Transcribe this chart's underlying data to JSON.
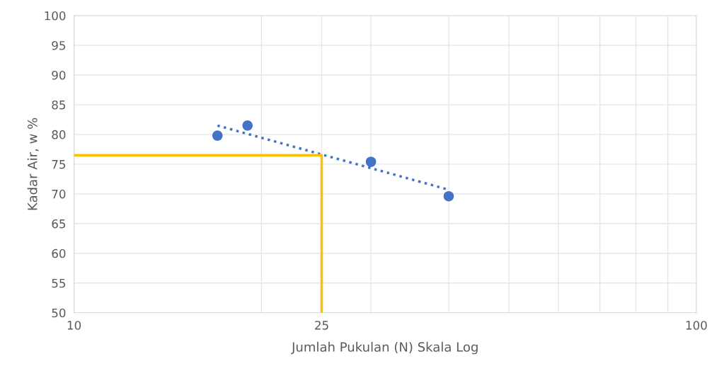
{
  "chart_data": {
    "type": "scatter",
    "xlabel": "Jumlah Pukulan (N) Skala Log",
    "ylabel": "Kadar Air, w %",
    "log": "x",
    "xlim": [
      10,
      100
    ],
    "ylim": [
      50,
      100
    ],
    "xticks": [
      10,
      {
        "value": 20,
        "label": null
      },
      {
        "value": 25,
        "label": "25"
      },
      {
        "value": 30,
        "label": null
      },
      {
        "value": 40,
        "label": null
      },
      {
        "value": 50,
        "label": null
      },
      {
        "value": 60,
        "label": null
      },
      {
        "value": 70,
        "label": null
      },
      {
        "value": 80,
        "label": null
      },
      {
        "value": 90,
        "label": null
      },
      100
    ],
    "yticks": [
      50,
      55,
      60,
      65,
      70,
      75,
      80,
      85,
      90,
      95,
      100
    ],
    "grid": true,
    "marker": "circle",
    "series": [
      {
        "color": "#4472c4",
        "x": [
          17,
          19,
          30,
          40
        ],
        "values": [
          79.8,
          81.5,
          75.4,
          69.6
        ]
      },
      {
        "type": "line",
        "color": "#4472c4",
        "line_style": "dotted",
        "marker": "none",
        "x": [
          17,
          40
        ],
        "values": [
          81.5,
          70.7
        ]
      },
      {
        "type": "line",
        "color": "#ffc000",
        "line_style": "solid",
        "marker": "none",
        "x": [
          10,
          25,
          25
        ],
        "values": [
          76.5,
          76.5,
          50
        ]
      }
    ]
  }
}
